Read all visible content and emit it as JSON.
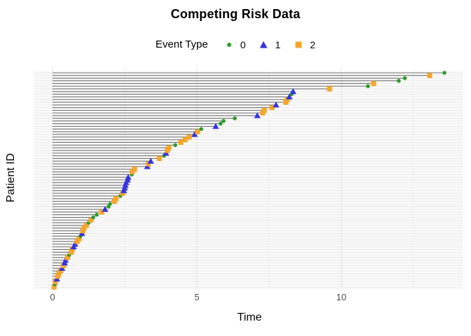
{
  "title": "Competing Risk Data",
  "legend": {
    "title": "Event Type",
    "items": [
      {
        "label": "0",
        "shape": "circle",
        "color": "#2D9A2D"
      },
      {
        "label": "1",
        "shape": "triangle",
        "color": "#3434E0"
      },
      {
        "label": "2",
        "shape": "square",
        "color": "#F7A62A"
      }
    ]
  },
  "chart_data": {
    "type": "scatter",
    "variant": "lollipop-segment-plot",
    "title": "Competing Risk Data",
    "xlabel": "Time",
    "ylabel": "Patient ID",
    "x_ticks": [
      0,
      5,
      10
    ],
    "x_minor_gridlines": [
      2.5,
      7.5,
      12.5
    ],
    "xlim": [
      -0.65,
      14.25
    ],
    "n_patients": 81,
    "grid": true,
    "legend_position": "top",
    "segment_color": "#6F6F6F",
    "grid_major_color": "#E3E3E3",
    "grid_minor_color": "#F2F2F2",
    "event_colors": {
      "0": "#2D9A2D",
      "1": "#3434E0",
      "2": "#F7A62A"
    },
    "event_shapes": {
      "0": "circle",
      "1": "triangle",
      "2": "square"
    },
    "patients": [
      {
        "t": 0.05,
        "e": 2
      },
      {
        "t": 0.08,
        "e": 0
      },
      {
        "t": 0.1,
        "e": 2
      },
      {
        "t": 0.15,
        "e": 1
      },
      {
        "t": 0.18,
        "e": 2
      },
      {
        "t": 0.22,
        "e": 2
      },
      {
        "t": 0.28,
        "e": 2
      },
      {
        "t": 0.33,
        "e": 1
      },
      {
        "t": 0.38,
        "e": 2
      },
      {
        "t": 0.42,
        "e": 1
      },
      {
        "t": 0.45,
        "e": 1
      },
      {
        "t": 0.52,
        "e": 2
      },
      {
        "t": 0.58,
        "e": 0
      },
      {
        "t": 0.65,
        "e": 2
      },
      {
        "t": 0.68,
        "e": 2
      },
      {
        "t": 0.73,
        "e": 1
      },
      {
        "t": 0.78,
        "e": 1
      },
      {
        "t": 0.85,
        "e": 2
      },
      {
        "t": 0.92,
        "e": 2
      },
      {
        "t": 0.97,
        "e": 0
      },
      {
        "t": 1.02,
        "e": 1
      },
      {
        "t": 1.05,
        "e": 2
      },
      {
        "t": 1.09,
        "e": 2
      },
      {
        "t": 1.17,
        "e": 2
      },
      {
        "t": 1.25,
        "e": 0
      },
      {
        "t": 1.33,
        "e": 2
      },
      {
        "t": 1.41,
        "e": 0
      },
      {
        "t": 1.53,
        "e": 0
      },
      {
        "t": 1.7,
        "e": 2
      },
      {
        "t": 1.82,
        "e": 1
      },
      {
        "t": 1.94,
        "e": 0
      },
      {
        "t": 1.99,
        "e": 0
      },
      {
        "t": 2.14,
        "e": 2
      },
      {
        "t": 2.2,
        "e": 2
      },
      {
        "t": 2.35,
        "e": 0
      },
      {
        "t": 2.43,
        "e": 2
      },
      {
        "t": 2.47,
        "e": 1
      },
      {
        "t": 2.5,
        "e": 1
      },
      {
        "t": 2.52,
        "e": 1
      },
      {
        "t": 2.55,
        "e": 1
      },
      {
        "t": 2.6,
        "e": 1
      },
      {
        "t": 2.62,
        "e": 1
      },
      {
        "t": 2.74,
        "e": 0
      },
      {
        "t": 2.76,
        "e": 2
      },
      {
        "t": 2.84,
        "e": 2
      },
      {
        "t": 3.28,
        "e": 1
      },
      {
        "t": 3.32,
        "e": 2
      },
      {
        "t": 3.4,
        "e": 1
      },
      {
        "t": 3.7,
        "e": 2
      },
      {
        "t": 3.86,
        "e": 0
      },
      {
        "t": 3.93,
        "e": 1
      },
      {
        "t": 3.98,
        "e": 2
      },
      {
        "t": 4.03,
        "e": 2
      },
      {
        "t": 4.25,
        "e": 0
      },
      {
        "t": 4.44,
        "e": 2
      },
      {
        "t": 4.59,
        "e": 2
      },
      {
        "t": 4.73,
        "e": 2
      },
      {
        "t": 4.92,
        "e": 1
      },
      {
        "t": 5.02,
        "e": 2
      },
      {
        "t": 5.15,
        "e": 0
      },
      {
        "t": 5.65,
        "e": 1
      },
      {
        "t": 5.82,
        "e": 0
      },
      {
        "t": 5.92,
        "e": 0
      },
      {
        "t": 6.31,
        "e": 0
      },
      {
        "t": 7.09,
        "e": 1
      },
      {
        "t": 7.28,
        "e": 2
      },
      {
        "t": 7.33,
        "e": 2
      },
      {
        "t": 7.6,
        "e": 2
      },
      {
        "t": 7.74,
        "e": 1
      },
      {
        "t": 8.08,
        "e": 2
      },
      {
        "t": 8.13,
        "e": 2
      },
      {
        "t": 8.2,
        "e": 1
      },
      {
        "t": 8.28,
        "e": 0
      },
      {
        "t": 8.33,
        "e": 1
      },
      {
        "t": 9.59,
        "e": 2
      },
      {
        "t": 10.92,
        "e": 0
      },
      {
        "t": 11.12,
        "e": 2
      },
      {
        "t": 11.99,
        "e": 0
      },
      {
        "t": 12.2,
        "e": 0
      },
      {
        "t": 13.06,
        "e": 2
      },
      {
        "t": 13.57,
        "e": 0
      }
    ]
  }
}
